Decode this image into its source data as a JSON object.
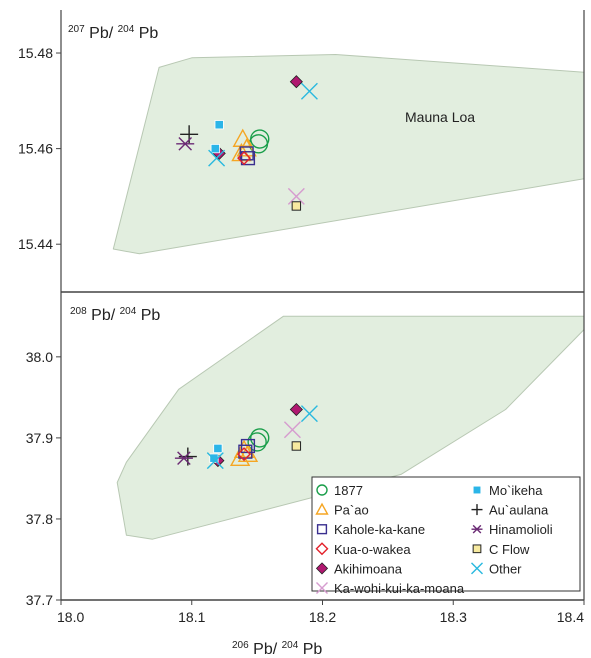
{
  "chart_data": [
    {
      "type": "scatter",
      "panel": "top",
      "ylabel_parts": [
        "207",
        "Pb/",
        "204",
        "Pb"
      ],
      "xlim": [
        18.0,
        18.4
      ],
      "ylim": [
        15.43,
        15.489
      ],
      "yticks": [
        "15.44",
        "15.46",
        "15.48"
      ],
      "yticks_values": [
        15.44,
        15.46,
        15.48
      ],
      "field": {
        "label": "Mauna Loa",
        "polygon": [
          [
            18.04,
            15.439
          ],
          [
            18.06,
            15.438
          ],
          [
            18.45,
            15.456
          ],
          [
            18.45,
            15.475
          ],
          [
            18.21,
            15.4797
          ],
          [
            18.1,
            15.479
          ],
          [
            18.075,
            15.477
          ]
        ]
      },
      "series": [
        {
          "name": "1877",
          "marker": "circle",
          "color": "#1a9e4a",
          "points": [
            [
              18.152,
              15.462
            ],
            [
              18.151,
              15.461
            ]
          ]
        },
        {
          "name": "Pa`ao",
          "marker": "triangle",
          "color": "#f5a623",
          "points": [
            [
              18.139,
              15.462
            ],
            [
              18.142,
              15.46
            ],
            [
              18.138,
              15.459
            ]
          ]
        },
        {
          "name": "Kahole-ka-kane",
          "marker": "square-open",
          "color": "#3a2f8f",
          "points": [
            [
              18.142,
              15.459
            ],
            [
              18.143,
              15.458
            ]
          ]
        },
        {
          "name": "Kua-o-wakea",
          "marker": "diamond-open",
          "color": "#e3202a",
          "points": [
            [
              18.14,
              15.458
            ]
          ]
        },
        {
          "name": "Akihimoana",
          "marker": "diamond-filled",
          "color": "#b01870",
          "points": [
            [
              18.18,
              15.474
            ],
            [
              18.121,
              15.459
            ]
          ]
        },
        {
          "name": "Ka-wohi-kui-ka-moana",
          "marker": "x",
          "color": "#d69ccf",
          "points": [
            [
              18.18,
              15.45
            ]
          ]
        },
        {
          "name": "Mo`ikeha",
          "marker": "square-filled",
          "color": "#2bb5e8",
          "points": [
            [
              18.121,
              15.465
            ],
            [
              18.118,
              15.46
            ]
          ]
        },
        {
          "name": "Au`aulana",
          "marker": "plus",
          "color": "#222222",
          "points": [
            [
              18.098,
              15.463
            ]
          ]
        },
        {
          "name": "Hinamolioli",
          "marker": "asterisk",
          "color": "#6b2a74",
          "points": [
            [
              18.095,
              15.461
            ]
          ]
        },
        {
          "name": "C Flow",
          "marker": "square-yellow",
          "color": "#f7eaa0",
          "points": [
            [
              18.18,
              15.448
            ]
          ]
        },
        {
          "name": "Other",
          "marker": "x",
          "color": "#29b9df",
          "points": [
            [
              18.19,
              15.472
            ],
            [
              18.119,
              15.458
            ]
          ]
        }
      ]
    },
    {
      "type": "scatter",
      "panel": "bottom",
      "ylabel_parts": [
        "208",
        "Pb/",
        "204",
        "Pb"
      ],
      "xlabel_parts": [
        "206",
        "Pb/",
        "204",
        "Pb"
      ],
      "xlim": [
        18.0,
        18.4
      ],
      "xticks": [
        "18.0",
        "18.1",
        "18.2",
        "18.3",
        "18.4"
      ],
      "xticks_values": [
        18.0,
        18.1,
        18.2,
        18.3,
        18.4
      ],
      "ylim": [
        37.7,
        38.08
      ],
      "yticks": [
        "37.7",
        "37.8",
        "37.9",
        "38.0"
      ],
      "yticks_values": [
        37.7,
        37.8,
        37.9,
        38.0
      ],
      "field": {
        "polygon": [
          [
            18.05,
            37.78
          ],
          [
            18.07,
            37.775
          ],
          [
            18.26,
            37.855
          ],
          [
            18.34,
            37.935
          ],
          [
            18.41,
            38.05
          ],
          [
            18.17,
            38.05
          ],
          [
            18.09,
            37.96
          ],
          [
            18.05,
            37.87
          ],
          [
            18.043,
            37.845
          ]
        ]
      },
      "series": [
        {
          "name": "1877",
          "marker": "circle",
          "color": "#1a9e4a",
          "points": [
            [
              18.152,
              37.9
            ],
            [
              18.15,
              37.895
            ]
          ]
        },
        {
          "name": "Pa`ao",
          "marker": "triangle",
          "color": "#f5a623",
          "points": [
            [
              18.14,
              37.885
            ],
            [
              18.143,
              37.88
            ],
            [
              18.137,
              37.875
            ]
          ]
        },
        {
          "name": "Kahole-ka-kane",
          "marker": "square-open",
          "color": "#3a2f8f",
          "points": [
            [
              18.143,
              37.89
            ],
            [
              18.141,
              37.883
            ]
          ]
        },
        {
          "name": "Kua-o-wakea",
          "marker": "diamond-open",
          "color": "#e3202a",
          "points": [
            [
              18.14,
              37.88
            ]
          ]
        },
        {
          "name": "Akihimoana",
          "marker": "diamond-filled",
          "color": "#b01870",
          "points": [
            [
              18.18,
              37.935
            ],
            [
              18.12,
              37.872
            ]
          ]
        },
        {
          "name": "Ka-wohi-kui-ka-moana",
          "marker": "x",
          "color": "#d69ccf",
          "points": [
            [
              18.177,
              37.91
            ]
          ]
        },
        {
          "name": "Mo`ikeha",
          "marker": "square-filled",
          "color": "#2bb5e8",
          "points": [
            [
              18.12,
              37.887
            ],
            [
              18.117,
              37.875
            ]
          ]
        },
        {
          "name": "Au`aulana",
          "marker": "plus",
          "color": "#222222",
          "points": [
            [
              18.097,
              37.877
            ]
          ]
        },
        {
          "name": "Hinamolioli",
          "marker": "asterisk",
          "color": "#6b2a74",
          "points": [
            [
              18.094,
              37.875
            ]
          ]
        },
        {
          "name": "C Flow",
          "marker": "square-yellow",
          "color": "#f7eaa0",
          "points": [
            [
              18.18,
              37.89
            ]
          ]
        },
        {
          "name": "Other",
          "marker": "x",
          "color": "#29b9df",
          "points": [
            [
              18.19,
              37.93
            ],
            [
              18.118,
              37.872
            ]
          ]
        }
      ]
    }
  ],
  "legend": {
    "placement": "bottom-right of lower panel",
    "columns": [
      [
        {
          "name": "1877",
          "marker": "circle",
          "color": "#1a9e4a"
        },
        {
          "name": "Pa`ao",
          "marker": "triangle",
          "color": "#f5a623"
        },
        {
          "name": "Kahole-ka-kane",
          "marker": "square-open",
          "color": "#3a2f8f"
        },
        {
          "name": "Kua-o-wakea",
          "marker": "diamond-open",
          "color": "#e3202a"
        },
        {
          "name": "Akihimoana",
          "marker": "diamond-filled",
          "color": "#b01870"
        },
        {
          "name": "Ka-wohi-kui-ka-moana",
          "marker": "x",
          "color": "#d69ccf"
        }
      ],
      [
        {
          "name": "Mo`ikeha",
          "marker": "square-filled",
          "color": "#2bb5e8"
        },
        {
          "name": "Au`aulana",
          "marker": "plus",
          "color": "#222222"
        },
        {
          "name": "Hinamolioli",
          "marker": "asterisk",
          "color": "#6b2a74"
        },
        {
          "name": "C Flow",
          "marker": "square-yellow",
          "color": "#f7eaa0"
        },
        {
          "name": "Other",
          "marker": "x",
          "color": "#29b9df"
        }
      ]
    ]
  },
  "colors": {
    "field_fill": "#e2eedf",
    "field_stroke": "#b8c8b3",
    "axis": "#444444"
  }
}
